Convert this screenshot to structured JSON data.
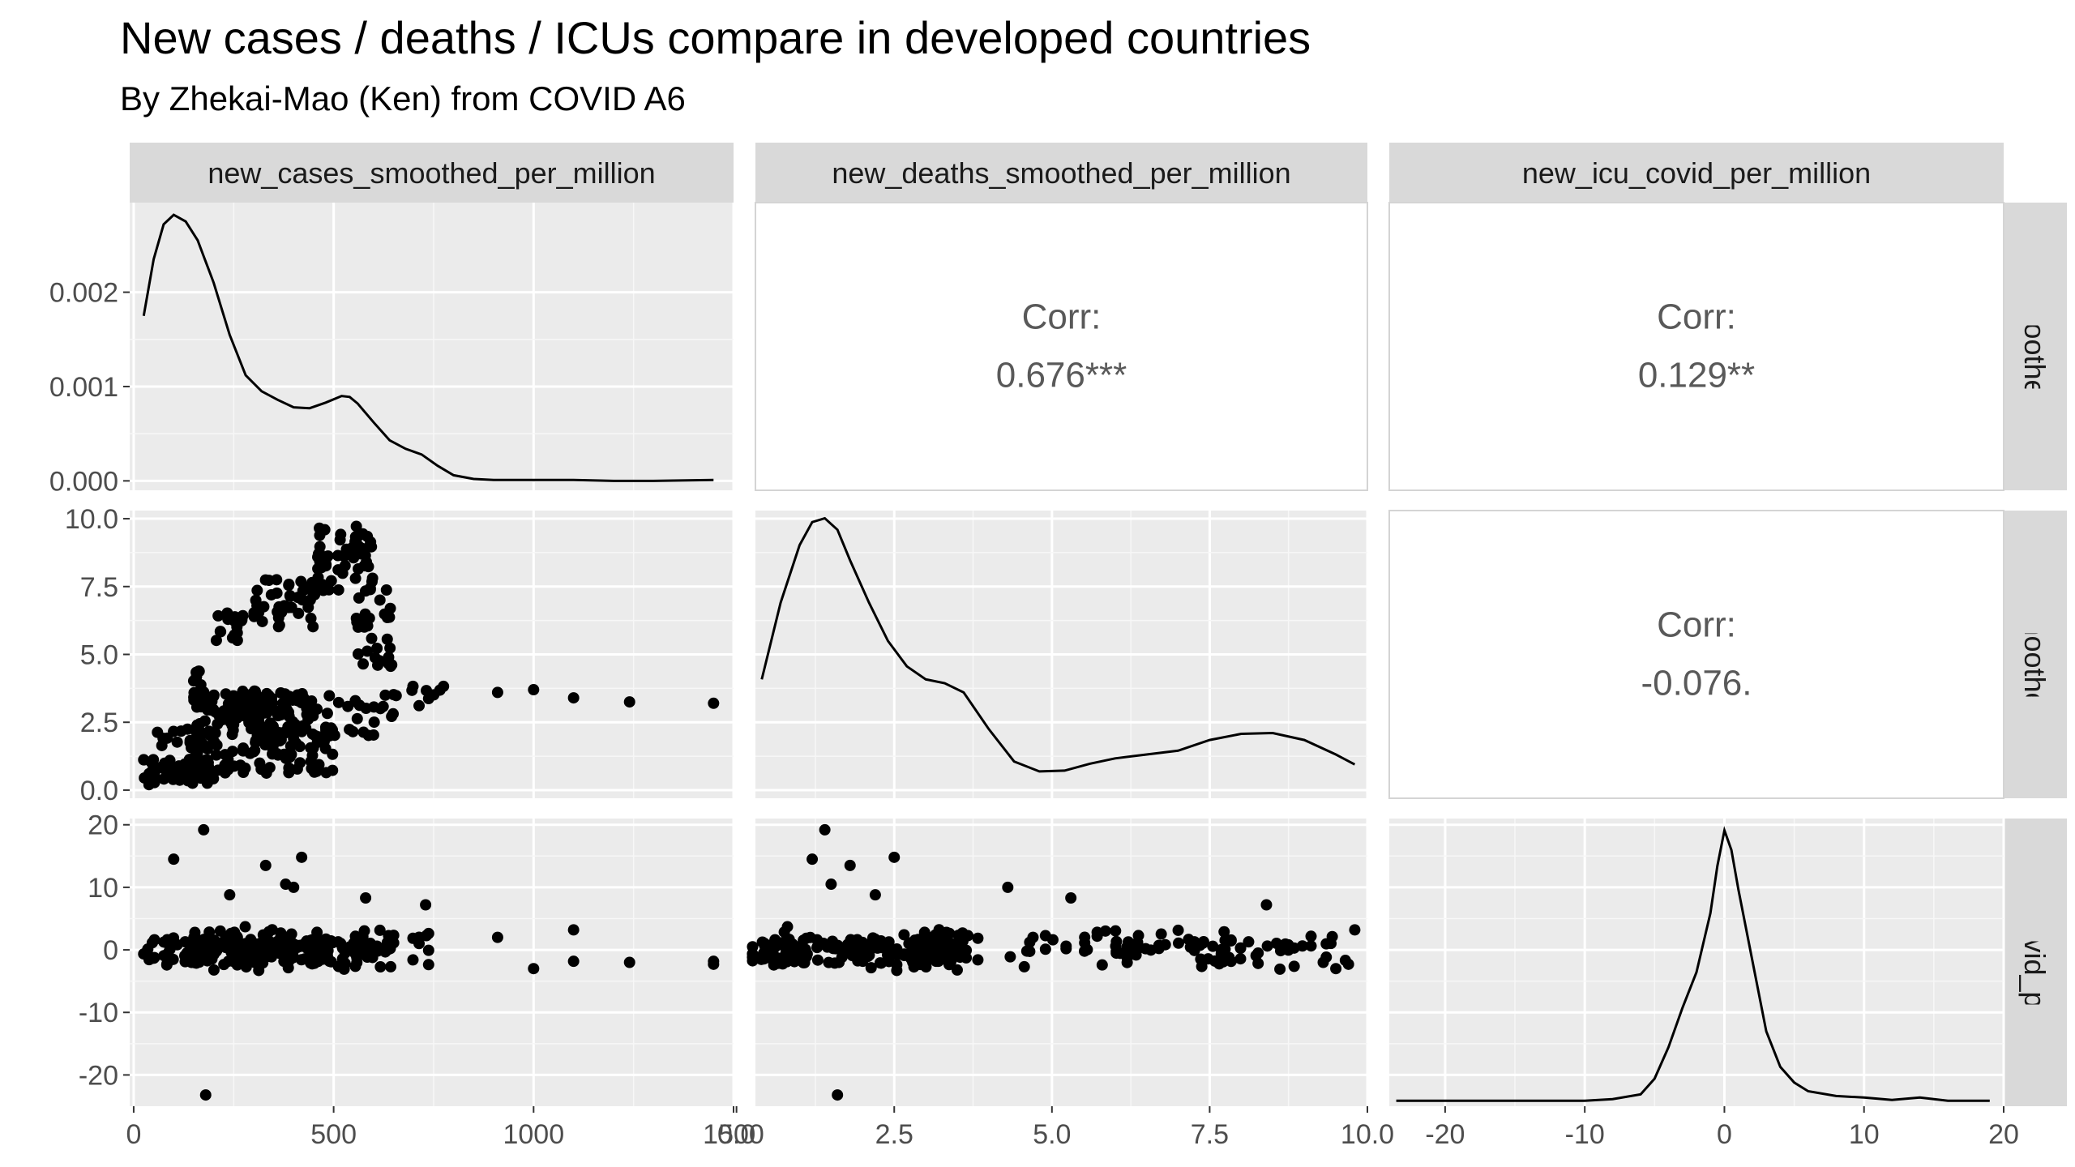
{
  "title": "New cases / deaths / ICUs compare in developed countries",
  "subtitle": "By Zhekai-Mao (Ken) from COVID A6",
  "colors": {
    "panel_bg": "#ebebeb",
    "strip_bg": "#d9d9d9",
    "grid_major": "#ffffff",
    "corr_text": "#595959",
    "point": "#000000"
  },
  "chart_data": {
    "type": "scatter",
    "kind": "pairs-plot (ggpairs)",
    "variables": [
      "new_cases_smoothed_per_million",
      "new_deaths_smoothed_per_million",
      "new_icu_covid_per_million"
    ],
    "row_strip_labels": [
      "ases_smoothed_per_",
      "aths_smoothed_per",
      "_icu_covid_per_mil"
    ],
    "x_ranges": [
      [
        -10,
        1500
      ],
      [
        0.3,
        10.0
      ],
      [
        -24,
        20
      ]
    ],
    "x_ticks": [
      {
        "values": [
          0,
          500,
          1000,
          1500
        ],
        "labels": [
          "0",
          "500",
          "1000",
          "1500"
        ]
      },
      {
        "values": [
          0.0,
          2.5,
          5.0,
          7.5,
          10.0
        ],
        "labels": [
          "0.0",
          "2.5",
          "5.0",
          "7.5",
          "10.0"
        ]
      },
      {
        "values": [
          -20,
          -10,
          0,
          10,
          20
        ],
        "labels": [
          "-20",
          "-10",
          "0",
          "10",
          "20"
        ]
      }
    ],
    "y_axes": [
      {
        "range": [
          -0.0001,
          0.00295
        ],
        "ticks": [
          0,
          0.001,
          0.002
        ],
        "labels": [
          "0.000",
          "0.001",
          "0.002"
        ]
      },
      {
        "range": [
          -0.3,
          10.3
        ],
        "ticks": [
          0,
          2.5,
          5.0,
          7.5,
          10.0
        ],
        "labels": [
          "0.0",
          "2.5",
          "5.0",
          "7.5",
          "10.0"
        ]
      },
      {
        "range": [
          -25,
          21
        ],
        "ticks": [
          -20,
          -10,
          0,
          10,
          20
        ],
        "labels": [
          "-20",
          "-10",
          "0",
          "10",
          "20"
        ]
      }
    ],
    "correlations": [
      {
        "row": 0,
        "col": 1,
        "label": "Corr:",
        "value": "0.676***"
      },
      {
        "row": 0,
        "col": 2,
        "label": "Corr:",
        "value": "0.129**"
      },
      {
        "row": 1,
        "col": 2,
        "label": "Corr:",
        "value": "-0.076."
      }
    ],
    "densities": [
      {
        "variable": "new_cases_smoothed_per_million",
        "x": [
          25,
          50,
          75,
          100,
          130,
          160,
          200,
          240,
          280,
          320,
          360,
          400,
          440,
          480,
          520,
          540,
          560,
          600,
          640,
          680,
          720,
          760,
          800,
          850,
          900,
          1000,
          1100,
          1200,
          1300,
          1450
        ],
        "y": [
          0.00175,
          0.00235,
          0.00272,
          0.00282,
          0.00275,
          0.00255,
          0.0021,
          0.00155,
          0.00112,
          0.00095,
          0.00086,
          0.00078,
          0.00077,
          0.00083,
          0.0009,
          0.00089,
          0.00082,
          0.00062,
          0.00043,
          0.00034,
          0.00028,
          0.00016,
          6e-05,
          2e-05,
          1e-05,
          1e-05,
          1e-05,
          0.0,
          0.0,
          1e-05
        ]
      },
      {
        "variable": "new_deaths_smoothed_per_million",
        "x": [
          0.4,
          0.7,
          1.0,
          1.2,
          1.4,
          1.6,
          1.8,
          2.1,
          2.4,
          2.7,
          3.0,
          3.3,
          3.6,
          4.0,
          4.4,
          4.8,
          5.2,
          5.6,
          6.0,
          6.5,
          7.0,
          7.5,
          8.0,
          8.5,
          9.0,
          9.5,
          9.8
        ],
        "y": [
          0.145,
          0.245,
          0.32,
          0.35,
          0.355,
          0.34,
          0.3,
          0.245,
          0.195,
          0.162,
          0.145,
          0.14,
          0.128,
          0.08,
          0.038,
          0.025,
          0.026,
          0.035,
          0.042,
          0.047,
          0.052,
          0.066,
          0.074,
          0.075,
          0.066,
          0.047,
          0.034
        ],
        "range": [
          -0.01,
          0.365
        ]
      },
      {
        "variable": "new_icu_covid_per_million",
        "x": [
          -23.5,
          -20,
          -15,
          -10,
          -8,
          -6,
          -5,
          -4,
          -3,
          -2,
          -1,
          -0.5,
          0,
          0.5,
          1,
          2,
          3,
          4,
          5,
          6,
          8,
          10,
          12,
          14,
          16,
          19
        ],
        "y": [
          0.002,
          0.002,
          0.002,
          0.002,
          0.004,
          0.01,
          0.03,
          0.07,
          0.12,
          0.165,
          0.24,
          0.3,
          0.345,
          0.32,
          0.27,
          0.18,
          0.09,
          0.045,
          0.025,
          0.014,
          0.008,
          0.006,
          0.003,
          0.006,
          0.002,
          0.002
        ],
        "range": [
          -0.005,
          0.36
        ]
      }
    ],
    "scatter_clusters": [
      {
        "cx": [
          25,
          200
        ],
        "cy": [
          0.2,
          1.2
        ],
        "n": 60
      },
      {
        "cx": [
          50,
          500
        ],
        "cy": [
          0.6,
          2.3
        ],
        "n": 120
      },
      {
        "cx": [
          150,
          350
        ],
        "cy": [
          2.0,
          3.7
        ],
        "n": 70
      },
      {
        "cx": [
          170,
          450
        ],
        "cy": [
          2.7,
          3.6
        ],
        "n": 70
      },
      {
        "cx": [
          350,
          650
        ],
        "cy": [
          2.0,
          3.5
        ],
        "n": 40
      },
      {
        "cx": [
          300,
          460
        ],
        "cy": [
          6.0,
          7.8
        ],
        "n": 40
      },
      {
        "cx": [
          460,
          600
        ],
        "cy": [
          7.3,
          9.8
        ],
        "n": 60
      },
      {
        "cx": [
          550,
          650
        ],
        "cy": [
          4.5,
          7.5
        ],
        "n": 30
      },
      {
        "cx": [
          200,
          280
        ],
        "cy": [
          5.4,
          6.6
        ],
        "n": 18
      },
      {
        "cx": [
          150,
          180
        ],
        "cy": [
          3.0,
          4.4
        ],
        "n": 14
      },
      {
        "cx": [
          650,
          780
        ],
        "cy": [
          3.1,
          3.9
        ],
        "n": 10
      }
    ],
    "scatter_outliers": [
      {
        "x": 910,
        "y": 3.6
      },
      {
        "x": 1000,
        "y": 3.7
      },
      {
        "x": 1100,
        "y": 3.4
      },
      {
        "x": 1240,
        "y": 3.25
      },
      {
        "x": 1450,
        "y": 3.2
      }
    ],
    "icu_outliers": [
      {
        "cases": 175,
        "deaths": 1.4,
        "icu": 19.2
      },
      {
        "cases": 180,
        "deaths": 1.6,
        "icu": -23.2
      },
      {
        "cases": 100,
        "deaths": 1.2,
        "icu": 14.5
      },
      {
        "cases": 420,
        "deaths": 2.5,
        "icu": 14.8
      },
      {
        "cases": 330,
        "deaths": 1.8,
        "icu": 13.5
      },
      {
        "cases": 400,
        "deaths": 4.3,
        "icu": 10.0
      },
      {
        "cases": 380,
        "deaths": 1.5,
        "icu": 10.5
      },
      {
        "cases": 240,
        "deaths": 2.2,
        "icu": 8.8
      },
      {
        "cases": 580,
        "deaths": 5.3,
        "icu": 8.3
      },
      {
        "cases": 730,
        "deaths": 8.4,
        "icu": 7.2
      },
      {
        "cases": 910,
        "deaths": 4.7,
        "icu": 2.0
      },
      {
        "cases": 1000,
        "deaths": 9.5,
        "icu": -3.0
      },
      {
        "cases": 1100,
        "deaths": 9.8,
        "icu": 3.2
      },
      {
        "cases": 1240,
        "deaths": 9.3,
        "icu": -2.0
      },
      {
        "cases": 1450,
        "deaths": 9.7,
        "icu": -2.3
      }
    ]
  }
}
